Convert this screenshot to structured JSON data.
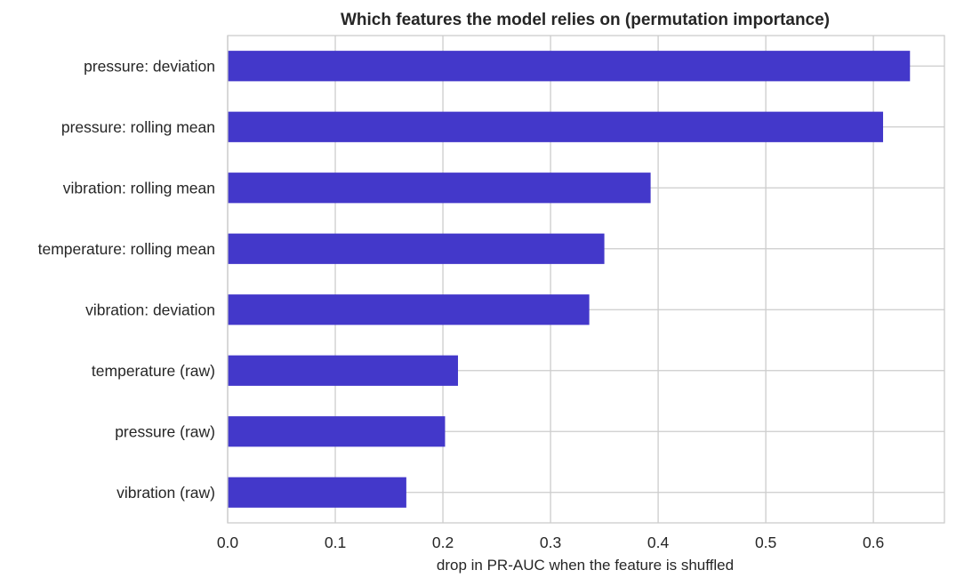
{
  "chart_data": {
    "type": "bar",
    "orientation": "horizontal",
    "title": "Which features the model relies on (permutation importance)",
    "xlabel": "drop in PR-AUC when the feature is shuffled",
    "ylabel": "",
    "categories": [
      "pressure: deviation",
      "pressure: rolling mean",
      "vibration: rolling mean",
      "temperature: rolling mean",
      "vibration: deviation",
      "temperature (raw)",
      "pressure (raw)",
      "vibration (raw)"
    ],
    "values": [
      0.634,
      0.609,
      0.393,
      0.35,
      0.336,
      0.214,
      0.202,
      0.166
    ],
    "xlim": [
      0,
      0.666
    ],
    "xticks": [
      0.0,
      0.1,
      0.2,
      0.3,
      0.4,
      0.5,
      0.6
    ],
    "xtick_labels": [
      "0.0",
      "0.1",
      "0.2",
      "0.3",
      "0.4",
      "0.5",
      "0.6"
    ],
    "grid": true,
    "bar_color": "#4338CA",
    "legend": "none"
  }
}
